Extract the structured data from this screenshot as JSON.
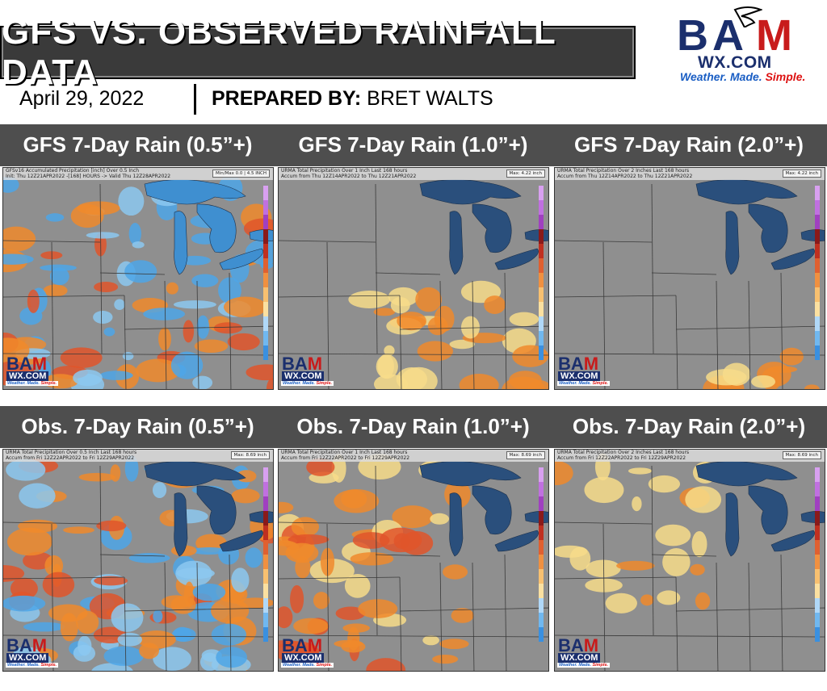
{
  "header": {
    "title": "GFS VS. OBSERVED RAINFALL DATA",
    "date": "April 29, 2022",
    "prepared_label": "PREPARED BY:",
    "prepared_name": "BRET WALTS"
  },
  "logo": {
    "bam_b": "B",
    "bam_a": "A",
    "bam_m": "M",
    "wx": "WX.COM",
    "tag_weather": "Weather.",
    "tag_made": "Made.",
    "tag_simple": "Simple.",
    "colors": {
      "b": "#1b2f6d",
      "a": "#c81b1b",
      "m": "#c81b1b",
      "navy": "#1b2f6d",
      "blue": "#1a5ec4",
      "red": "#d11111"
    }
  },
  "rows": [
    {
      "panels": [
        {
          "label": "GFS 7-Day Rain (0.5”+)",
          "hdr1": "GFSv16 Accumulated Precipitation [inch] Over 0.5 Inch",
          "hdr2": "Init: Thu 12Z21APR2022 -[168] HOURS -> Valid Thu 12Z28APR2022",
          "max": "Min/Max 0.0 | 4.5 INCH",
          "style": "gfs05"
        },
        {
          "label": "GFS 7-Day Rain (1.0”+)",
          "hdr1": "URMA Total Precipitation Over 1 Inch Last 168 hours",
          "hdr2": "Accum from Thu 12Z14APR2022 to Thu 12Z21APR2022",
          "max": "Max: 4.22 inch",
          "style": "gfs10"
        },
        {
          "label": "GFS 7-Day Rain (2.0”+)",
          "hdr1": "URMA Total Precipitation Over 2 Inches Last 168 hours",
          "hdr2": "Accum from Thu 12Z14APR2022 to Thu 12Z21APR2022",
          "max": "Max: 4.22 inch",
          "style": "gfs20"
        }
      ]
    },
    {
      "panels": [
        {
          "label": "Obs. 7-Day Rain (0.5”+)",
          "hdr1": "URMA Total Precipitation Over 0.5 Inch Last 168 hours",
          "hdr2": "Accum from Fri 12Z22APR2022 to Fri 12Z29APR2022",
          "max": "Max: 8.69 inch",
          "style": "obs05"
        },
        {
          "label": "Obs. 7-Day Rain (1.0”+)",
          "hdr1": "URMA Total Precipitation Over 1 Inch Last 168 hours",
          "hdr2": "Accum from Fri 12Z22APR2022 to Fri 12Z29APR2022",
          "max": "Max: 8.69 inch",
          "style": "obs10"
        },
        {
          "label": "Obs. 7-Day Rain (2.0”+)",
          "hdr1": "URMA Total Precipitation Over 2 Inches Last 168 hours",
          "hdr2": "Accum from Fri 12Z22APR2022 to Fri 12Z29APR2022",
          "max": "Max: 8.69 inch",
          "style": "obs20"
        }
      ]
    }
  ],
  "map_colors": {
    "land": "#8f8f8f",
    "lake": "#2a4f7c",
    "blue_rain": "#4ea6e8",
    "light_blue": "#8cc8f0",
    "orange": "#f08a2c",
    "red_orange": "#e0552a",
    "yellow": "#f7dc8a",
    "border": "#3a3a3a"
  }
}
